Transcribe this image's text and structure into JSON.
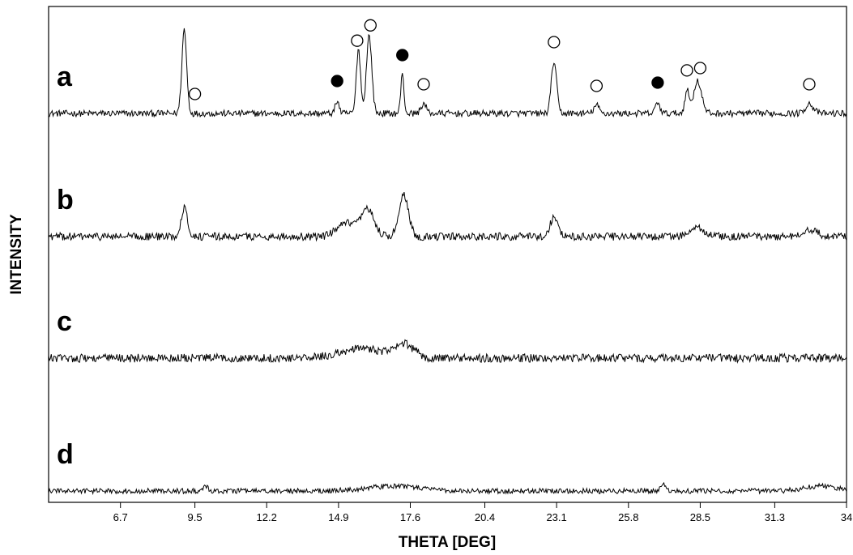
{
  "chart_data": {
    "type": "line",
    "xlabel": "THETA [DEG]",
    "ylabel": "INTENSITY",
    "xlim": [
      4,
      34
    ],
    "xticks": [
      "6.7",
      "9.5",
      "12.2",
      "14.9",
      "17.6",
      "20.4",
      "23.1",
      "25.8",
      "28.5",
      "31.3",
      "34"
    ],
    "grid": false,
    "curve_labels": [
      "a",
      "b",
      "c",
      "d"
    ],
    "series": [
      {
        "label": "a",
        "baseline": 0,
        "noise": 1.0,
        "peaks": [
          {
            "x": 9.1,
            "h": 26,
            "w": 0.09
          },
          {
            "x": 14.85,
            "h": 4,
            "w": 0.07
          },
          {
            "x": 15.65,
            "h": 20,
            "w": 0.08
          },
          {
            "x": 16.05,
            "h": 24,
            "w": 0.1
          },
          {
            "x": 17.3,
            "h": 12,
            "w": 0.06
          },
          {
            "x": 18.1,
            "h": 3,
            "w": 0.1
          },
          {
            "x": 23.0,
            "h": 16,
            "w": 0.1
          },
          {
            "x": 24.6,
            "h": 2.5,
            "w": 0.1
          },
          {
            "x": 26.9,
            "h": 3.5,
            "w": 0.08
          },
          {
            "x": 28.0,
            "h": 7,
            "w": 0.08
          },
          {
            "x": 28.4,
            "h": 10,
            "w": 0.15
          },
          {
            "x": 32.6,
            "h": 3,
            "w": 0.15
          }
        ]
      },
      {
        "label": "b",
        "baseline": 0,
        "noise": 1.2,
        "peaks": [
          {
            "x": 9.1,
            "h": 9,
            "w": 0.12
          },
          {
            "x": 15.2,
            "h": 4,
            "w": 0.35
          },
          {
            "x": 16.0,
            "h": 8,
            "w": 0.25
          },
          {
            "x": 17.35,
            "h": 13,
            "w": 0.18
          },
          {
            "x": 23.0,
            "h": 6,
            "w": 0.15
          },
          {
            "x": 28.4,
            "h": 2.5,
            "w": 0.3
          },
          {
            "x": 32.6,
            "h": 2,
            "w": 0.3
          }
        ]
      },
      {
        "label": "c",
        "baseline": 0,
        "noise": 1.3,
        "peaks": [
          {
            "x": 15.8,
            "h": 3,
            "w": 0.8
          },
          {
            "x": 17.4,
            "h": 4,
            "w": 0.35
          }
        ]
      },
      {
        "label": "d",
        "baseline": 0,
        "noise": 0.8,
        "peaks": [
          {
            "x": 9.9,
            "h": 1.5,
            "w": 0.08
          },
          {
            "x": 17.0,
            "h": 1.5,
            "w": 1.0
          },
          {
            "x": 27.1,
            "h": 2,
            "w": 0.08
          },
          {
            "x": 33.0,
            "h": 1.5,
            "w": 0.6
          }
        ]
      }
    ],
    "markers": [
      {
        "series": "a",
        "x": 9.5,
        "type": "open"
      },
      {
        "series": "a",
        "x": 14.85,
        "type": "filled"
      },
      {
        "series": "a",
        "x": 15.6,
        "type": "open"
      },
      {
        "series": "a",
        "x": 16.1,
        "type": "open"
      },
      {
        "series": "a",
        "x": 17.3,
        "type": "filled"
      },
      {
        "series": "a",
        "x": 18.1,
        "type": "open"
      },
      {
        "series": "a",
        "x": 23.0,
        "type": "open"
      },
      {
        "series": "a",
        "x": 24.6,
        "type": "open"
      },
      {
        "series": "a",
        "x": 26.9,
        "type": "filled"
      },
      {
        "series": "a",
        "x": 28.0,
        "type": "open"
      },
      {
        "series": "a",
        "x": 28.5,
        "type": "open"
      },
      {
        "series": "a",
        "x": 32.6,
        "type": "open"
      }
    ]
  }
}
